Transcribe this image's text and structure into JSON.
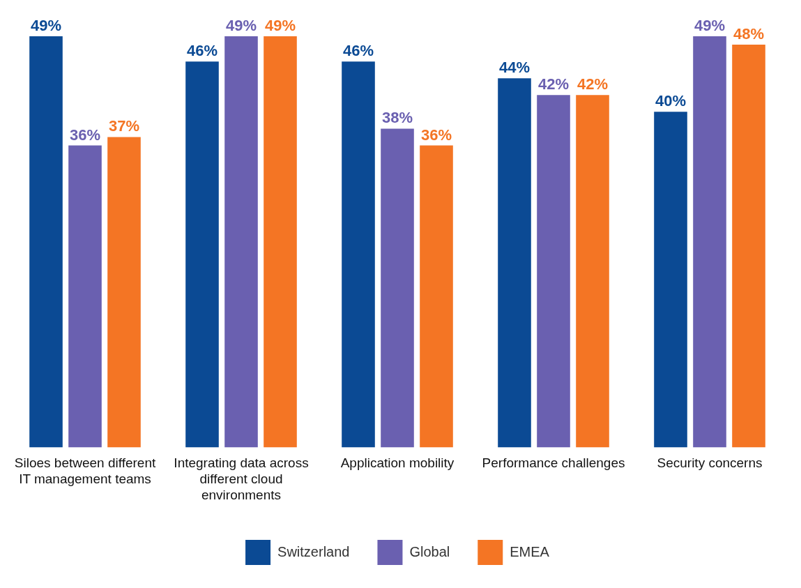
{
  "chart_data": {
    "type": "bar",
    "categories": [
      "Siloes between different IT management teams",
      "Integrating data across different cloud environments",
      "Application mobility",
      "Performance challenges",
      "Security concerns"
    ],
    "legend": "bottom",
    "series": [
      {
        "name": "Switzerland",
        "color": "#0b4a94",
        "values": [
          49,
          46,
          46,
          44,
          40
        ],
        "value_labels": [
          "49%",
          "46%",
          "46%",
          "44%",
          "40%"
        ]
      },
      {
        "name": "Global",
        "color": "#6a60b0",
        "values": [
          36,
          49,
          38,
          42,
          49
        ],
        "value_labels": [
          "36%",
          "49%",
          "38%",
          "42%",
          "49%"
        ]
      },
      {
        "name": "EMEA",
        "color": "#f47524",
        "values": [
          37,
          49,
          36,
          42,
          48
        ],
        "value_labels": [
          "37%",
          "49%",
          "36%",
          "42%",
          "48%"
        ]
      }
    ]
  }
}
